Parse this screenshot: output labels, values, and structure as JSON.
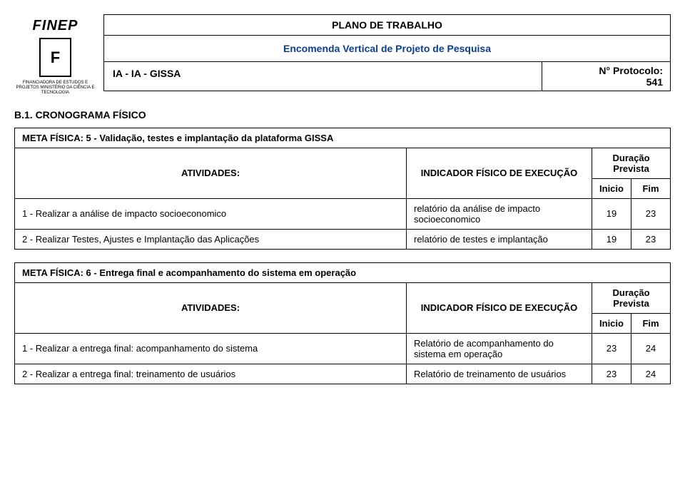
{
  "header": {
    "logo_text": "FINEP",
    "logo_sub": "FINANCIADORA DE ESTUDOS E PROJETOS\nMINISTÉRIO DA CIÊNCIA E TECNOLOGIA",
    "title": "PLANO DE TRABALHO",
    "subtitle": "Encomenda Vertical de Projeto de Pesquisa",
    "project_id": "IA - IA - GISSA",
    "protocolo_label": "N° Protocolo:",
    "protocolo_num": "541"
  },
  "section_code": "B.1. CRONOGRAMA FÍSICO",
  "col_labels": {
    "atividades": "ATIVIDADES:",
    "indicador": "INDICADOR FÍSICO DE EXECUÇÃO",
    "duracao": "Duração Prevista",
    "inicio": "Inicio",
    "fim": "Fim"
  },
  "metas": [
    {
      "title": "META FÍSICA: 5 - Validação, testes e implantação da plataforma GISSA",
      "rows": [
        {
          "atividade": "1 - Realizar a análise de impacto socioeconomico",
          "indicador": "relatório da análise de impacto socioeconomico",
          "inicio": "19",
          "fim": "23"
        },
        {
          "atividade": "2 - Realizar Testes, Ajustes e Implantação das Aplicações",
          "indicador": "relatório de testes e implantação",
          "inicio": "19",
          "fim": "23"
        }
      ]
    },
    {
      "title": "META FÍSICA: 6 - Entrega final e acompanhamento do sistema em operação",
      "rows": [
        {
          "atividade": "1 - Realizar a entrega final: acompanhamento do sistema",
          "indicador": "Relatório de acompanhamento do sistema em operação",
          "inicio": "23",
          "fim": "24"
        },
        {
          "atividade": "2 - Realizar a entrega final: treinamento de usuários",
          "indicador": "Relatório de treinamento de usuários",
          "inicio": "23",
          "fim": "24"
        }
      ]
    }
  ]
}
